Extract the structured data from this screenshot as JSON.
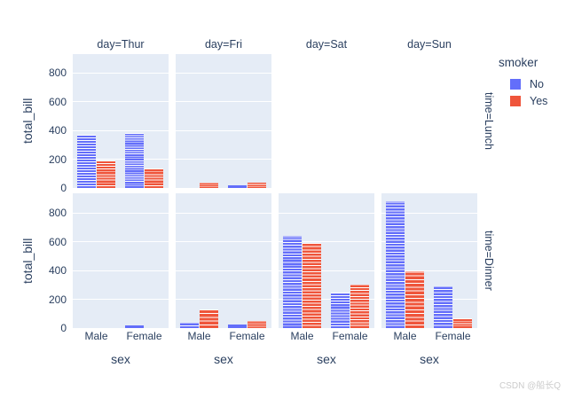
{
  "figure": {
    "watermark": "CSDN @船长Q"
  },
  "legend": {
    "title": "smoker",
    "items": [
      {
        "label": "No",
        "color": "#636EFA"
      },
      {
        "label": "Yes",
        "color": "#EF553B"
      }
    ]
  },
  "chart_data": {
    "type": "bar",
    "barmode": "grouped-stack-of-observations",
    "xlabel": "sex",
    "ylabel": "total_bill",
    "categories": [
      "Male",
      "Female"
    ],
    "facet_col_field": "day",
    "facet_cols": [
      "Thur",
      "Fri",
      "Sat",
      "Sun"
    ],
    "col_titles": [
      "day=Thur",
      "day=Fri",
      "day=Sat",
      "day=Sun"
    ],
    "facet_row_field": "time",
    "facet_rows": [
      "Lunch",
      "Dinner"
    ],
    "row_titles": [
      "time=Lunch",
      "time=Dinner"
    ],
    "legend_field": "smoker",
    "series_names": [
      "No",
      "Yes"
    ],
    "series_colors": {
      "No": "#636EFA",
      "Yes": "#EF553B"
    },
    "yticks": [
      0,
      200,
      400,
      600,
      800
    ],
    "ylim": [
      0,
      930
    ],
    "grid": true,
    "legend_position": "top-right",
    "plot_bgcolor": "#E5ECF6",
    "grid_color": "#ffffff",
    "font_color": "#2a3f5f",
    "panels": [
      {
        "time": "Lunch",
        "day": "Thur",
        "visible": true,
        "bars": [
          {
            "sex": "Male",
            "smoker": "No",
            "total_bill": 369.73,
            "n_obs": 20
          },
          {
            "sex": "Male",
            "smoker": "Yes",
            "total_bill": 191.71,
            "n_obs": 10
          },
          {
            "sex": "Female",
            "smoker": "No",
            "total_bill": 381.58,
            "n_obs": 24
          },
          {
            "sex": "Female",
            "smoker": "Yes",
            "total_bill": 134.53,
            "n_obs": 7
          }
        ]
      },
      {
        "time": "Lunch",
        "day": "Fri",
        "visible": true,
        "bars": [
          {
            "sex": "Male",
            "smoker": "Yes",
            "total_bill": 34.16,
            "n_obs": 3
          },
          {
            "sex": "Female",
            "smoker": "No",
            "total_bill": 15.98,
            "n_obs": 1
          },
          {
            "sex": "Female",
            "smoker": "Yes",
            "total_bill": 39.78,
            "n_obs": 3
          }
        ]
      },
      {
        "time": "Lunch",
        "day": "Sat",
        "visible": false,
        "bars": []
      },
      {
        "time": "Lunch",
        "day": "Sun",
        "visible": false,
        "bars": []
      },
      {
        "time": "Dinner",
        "day": "Thur",
        "visible": true,
        "bars": [
          {
            "sex": "Female",
            "smoker": "No",
            "total_bill": 18.78,
            "n_obs": 1
          }
        ]
      },
      {
        "time": "Dinner",
        "day": "Fri",
        "visible": true,
        "bars": [
          {
            "sex": "Male",
            "smoker": "No",
            "total_bill": 34.95,
            "n_obs": 2
          },
          {
            "sex": "Male",
            "smoker": "Yes",
            "total_bill": 129.46,
            "n_obs": 5
          },
          {
            "sex": "Female",
            "smoker": "No",
            "total_bill": 22.75,
            "n_obs": 1
          },
          {
            "sex": "Female",
            "smoker": "Yes",
            "total_bill": 48.8,
            "n_obs": 4
          }
        ]
      },
      {
        "time": "Dinner",
        "day": "Sat",
        "visible": true,
        "bars": [
          {
            "sex": "Male",
            "smoker": "No",
            "total_bill": 637.73,
            "n_obs": 32
          },
          {
            "sex": "Male",
            "smoker": "Yes",
            "total_bill": 589.62,
            "n_obs": 27
          },
          {
            "sex": "Female",
            "smoker": "No",
            "total_bill": 247.05,
            "n_obs": 13
          },
          {
            "sex": "Female",
            "smoker": "Yes",
            "total_bill": 304.0,
            "n_obs": 15
          }
        ]
      },
      {
        "time": "Dinner",
        "day": "Sun",
        "visible": true,
        "bars": [
          {
            "sex": "Male",
            "smoker": "No",
            "total_bill": 877.34,
            "n_obs": 43
          },
          {
            "sex": "Male",
            "smoker": "Yes",
            "total_bill": 392.12,
            "n_obs": 15
          },
          {
            "sex": "Female",
            "smoker": "No",
            "total_bill": 291.54,
            "n_obs": 14
          },
          {
            "sex": "Female",
            "smoker": "Yes",
            "total_bill": 66.16,
            "n_obs": 4
          }
        ]
      }
    ]
  }
}
